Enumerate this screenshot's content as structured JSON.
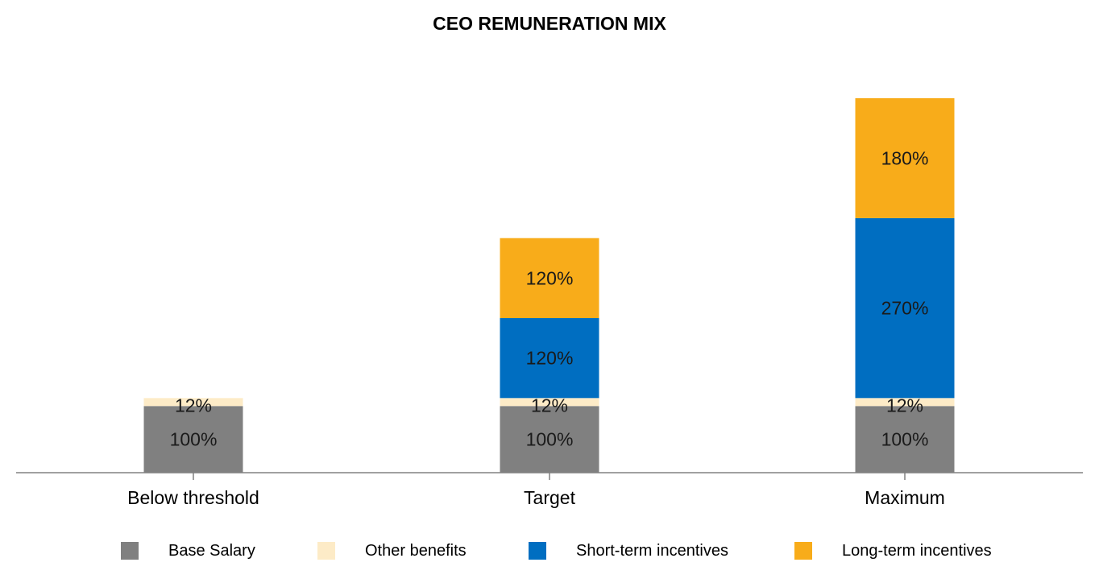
{
  "chart_data": {
    "type": "bar",
    "stacked": true,
    "title": "CEO REMUNERATION MIX",
    "xlabel": "",
    "ylabel": "",
    "ylim": [
      0,
      570
    ],
    "grid": false,
    "legend_position": "bottom",
    "categories": [
      "Below threshold",
      "Target",
      "Maximum"
    ],
    "series": [
      {
        "name": "Base Salary",
        "color": "#808080",
        "values": [
          100,
          100,
          100
        ],
        "labels": [
          "100%",
          "100%",
          "100%"
        ]
      },
      {
        "name": "Other benefits",
        "color": "#FDEBC7",
        "values": [
          12,
          12,
          12
        ],
        "labels": [
          "12%",
          "12%",
          "12%"
        ]
      },
      {
        "name": "Short-term incentives",
        "color": "#006EC1",
        "values": [
          0,
          120,
          270
        ],
        "labels": [
          "",
          "120%",
          "270%"
        ]
      },
      {
        "name": "Long-term incentives",
        "color": "#F8AC1A",
        "values": [
          0,
          120,
          180
        ],
        "labels": [
          "",
          "120%",
          "180%"
        ]
      }
    ]
  }
}
